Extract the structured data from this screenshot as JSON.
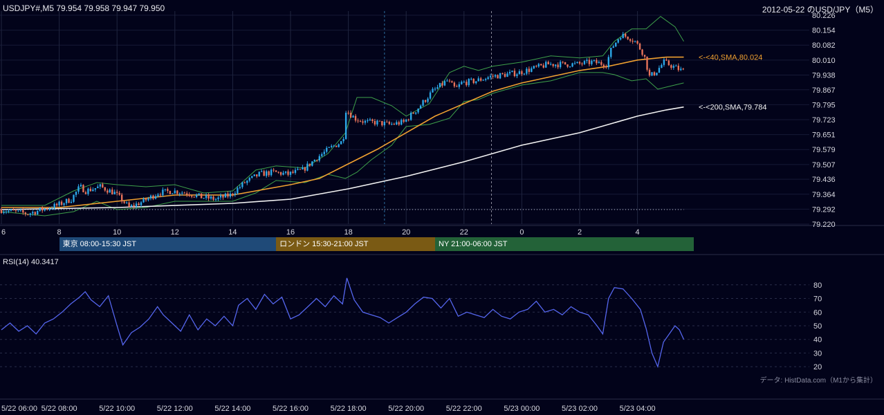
{
  "header": {
    "symbol_info": "USDJPY#,M5 79.954 79.958 79.947 79.950",
    "chart_title": "2012-05-22 のUSD/JPY（M5）"
  },
  "sessions": [
    {
      "label": "東京 08:00-15:30 JST",
      "color": "#1f4a78"
    },
    {
      "label": "ロンドン 15:30-21:00 JST",
      "color": "#7a5a14"
    },
    {
      "label": "NY 21:00-06:00 JST",
      "color": "#236238"
    }
  ],
  "indicators": {
    "sma40_label": "<-<40,SMA,80.024",
    "sma40_color": "#f0a030",
    "sma200_label": "<-<200,SMA,79.784",
    "sma200_color": "#f2f2f2",
    "bollinger_color": "#3ea04a",
    "candle_up_color": "#2ca8e8",
    "candle_down_color": "#e8735a",
    "rsi_label": "RSI(14) 40.3417",
    "rsi_color": "#5566ee"
  },
  "source_note": "データ: HistData.com（M1から集計）",
  "chart_data": [
    {
      "type": "candlestick",
      "title": "2012-05-22 のUSD/JPY（M5）",
      "ylim": [
        79.22,
        80.226
      ],
      "y_ticks": [
        "80.226",
        "80.154",
        "80.082",
        "80.010",
        "79.938",
        "79.867",
        "79.795",
        "79.723",
        "79.651",
        "79.579",
        "79.507",
        "79.436",
        "79.364",
        "79.292",
        "79.220"
      ],
      "x_ticks": [
        "6",
        "8",
        "10",
        "12",
        "14",
        "16",
        "18",
        "20",
        "22",
        "0",
        "2",
        "4"
      ],
      "x_hours": [
        6,
        8,
        10,
        12,
        14,
        16,
        18,
        20,
        22,
        24,
        26,
        28
      ],
      "x_range_hours": [
        6,
        29.5
      ],
      "close_path": [
        [
          6.0,
          79.29
        ],
        [
          6.5,
          79.28
        ],
        [
          7.0,
          79.27
        ],
        [
          7.5,
          79.29
        ],
        [
          8.0,
          79.31
        ],
        [
          8.5,
          79.34
        ],
        [
          8.8,
          79.4
        ],
        [
          9.0,
          79.38
        ],
        [
          9.5,
          79.4
        ],
        [
          10.0,
          79.37
        ],
        [
          10.3,
          79.33
        ],
        [
          10.5,
          79.3
        ],
        [
          11.0,
          79.33
        ],
        [
          11.5,
          79.37
        ],
        [
          12.0,
          79.38
        ],
        [
          12.5,
          79.37
        ],
        [
          13.0,
          79.35
        ],
        [
          13.5,
          79.34
        ],
        [
          14.0,
          79.36
        ],
        [
          14.5,
          79.42
        ],
        [
          15.0,
          79.46
        ],
        [
          15.5,
          79.47
        ],
        [
          16.0,
          79.46
        ],
        [
          16.5,
          79.48
        ],
        [
          17.0,
          79.54
        ],
        [
          17.5,
          79.59
        ],
        [
          17.9,
          79.62
        ],
        [
          18.0,
          79.77
        ],
        [
          18.3,
          79.73
        ],
        [
          18.7,
          79.71
        ],
        [
          19.0,
          79.71
        ],
        [
          19.5,
          79.7
        ],
        [
          20.0,
          79.71
        ],
        [
          20.5,
          79.78
        ],
        [
          21.0,
          79.86
        ],
        [
          21.5,
          79.91
        ],
        [
          21.8,
          79.87
        ],
        [
          22.0,
          79.9
        ],
        [
          22.5,
          79.91
        ],
        [
          23.0,
          79.93
        ],
        [
          23.5,
          79.94
        ],
        [
          24.0,
          79.95
        ],
        [
          24.5,
          79.97
        ],
        [
          25.0,
          79.99
        ],
        [
          25.5,
          79.99
        ],
        [
          26.0,
          79.99
        ],
        [
          26.5,
          80.0
        ],
        [
          27.0,
          79.99
        ],
        [
          27.2,
          80.07
        ],
        [
          27.5,
          80.13
        ],
        [
          27.8,
          80.12
        ],
        [
          28.0,
          80.1
        ],
        [
          28.3,
          80.04
        ],
        [
          28.5,
          79.93
        ],
        [
          28.7,
          79.95
        ],
        [
          29.0,
          80.0
        ],
        [
          29.3,
          79.98
        ],
        [
          29.6,
          79.96
        ]
      ],
      "series": [
        {
          "name": "40,SMA",
          "points": [
            [
              6.0,
              79.3
            ],
            [
              8.0,
              79.3
            ],
            [
              10.0,
              79.33
            ],
            [
              12.0,
              79.36
            ],
            [
              14.0,
              79.36
            ],
            [
              16.0,
              79.41
            ],
            [
              17.0,
              79.44
            ],
            [
              18.0,
              79.51
            ],
            [
              19.0,
              79.58
            ],
            [
              20.0,
              79.66
            ],
            [
              21.0,
              79.74
            ],
            [
              22.0,
              79.8
            ],
            [
              23.0,
              79.86
            ],
            [
              24.0,
              79.9
            ],
            [
              25.0,
              79.93
            ],
            [
              26.0,
              79.96
            ],
            [
              27.0,
              79.98
            ],
            [
              28.0,
              80.01
            ],
            [
              29.0,
              80.024
            ],
            [
              29.6,
              80.024
            ]
          ]
        },
        {
          "name": "200,SMA",
          "points": [
            [
              6.0,
              79.29
            ],
            [
              10.0,
              79.3
            ],
            [
              14.0,
              79.32
            ],
            [
              16.0,
              79.34
            ],
            [
              18.0,
              79.39
            ],
            [
              20.0,
              79.45
            ],
            [
              22.0,
              79.52
            ],
            [
              24.0,
              79.6
            ],
            [
              26.0,
              79.66
            ],
            [
              27.0,
              79.7
            ],
            [
              28.0,
              79.74
            ],
            [
              29.0,
              79.77
            ],
            [
              29.6,
              79.784
            ]
          ]
        },
        {
          "name": "BB upper",
          "points": [
            [
              6.0,
              79.31
            ],
            [
              7.5,
              79.31
            ],
            [
              8.5,
              79.38
            ],
            [
              9.3,
              79.42
            ],
            [
              10.0,
              79.41
            ],
            [
              11.0,
              79.4
            ],
            [
              12.0,
              79.41
            ],
            [
              13.0,
              79.37
            ],
            [
              14.0,
              79.38
            ],
            [
              14.8,
              79.48
            ],
            [
              15.5,
              79.5
            ],
            [
              16.5,
              79.49
            ],
            [
              17.3,
              79.56
            ],
            [
              17.9,
              79.66
            ],
            [
              18.3,
              79.83
            ],
            [
              18.8,
              79.83
            ],
            [
              19.5,
              79.79
            ],
            [
              20.0,
              79.74
            ],
            [
              20.8,
              79.8
            ],
            [
              21.5,
              79.95
            ],
            [
              22.0,
              79.98
            ],
            [
              22.5,
              79.96
            ],
            [
              23.0,
              79.98
            ],
            [
              24.0,
              80.0
            ],
            [
              25.0,
              80.03
            ],
            [
              26.0,
              80.02
            ],
            [
              26.8,
              80.03
            ],
            [
              27.2,
              80.1
            ],
            [
              27.8,
              80.16
            ],
            [
              28.3,
              80.16
            ],
            [
              28.8,
              80.22
            ],
            [
              29.3,
              80.17
            ],
            [
              29.6,
              80.1
            ]
          ]
        },
        {
          "name": "BB lower",
          "points": [
            [
              6.0,
              79.28
            ],
            [
              7.5,
              79.26
            ],
            [
              8.5,
              79.28
            ],
            [
              9.3,
              79.33
            ],
            [
              10.0,
              79.29
            ],
            [
              11.0,
              79.3
            ],
            [
              12.0,
              79.33
            ],
            [
              13.0,
              79.33
            ],
            [
              14.0,
              79.33
            ],
            [
              14.8,
              79.37
            ],
            [
              15.5,
              79.43
            ],
            [
              16.5,
              79.42
            ],
            [
              17.3,
              79.46
            ],
            [
              17.9,
              79.44
            ],
            [
              18.3,
              79.47
            ],
            [
              18.8,
              79.53
            ],
            [
              19.5,
              79.6
            ],
            [
              20.0,
              79.69
            ],
            [
              20.8,
              79.7
            ],
            [
              21.5,
              79.73
            ],
            [
              22.0,
              79.81
            ],
            [
              22.5,
              79.82
            ],
            [
              23.0,
              79.85
            ],
            [
              24.0,
              79.89
            ],
            [
              25.0,
              79.91
            ],
            [
              26.0,
              79.95
            ],
            [
              26.8,
              79.95
            ],
            [
              27.2,
              79.94
            ],
            [
              27.8,
              79.91
            ],
            [
              28.3,
              79.92
            ],
            [
              28.7,
              79.87
            ],
            [
              29.3,
              79.89
            ],
            [
              29.6,
              79.9
            ]
          ]
        }
      ],
      "annotations": [
        "<-<40,SMA,80.024",
        "<-<200,SMA,79.784"
      ]
    },
    {
      "type": "line",
      "title": "RSI(14) 40.3417",
      "ylim": [
        15,
        87
      ],
      "y_ticks": [
        80,
        70,
        60,
        50,
        40,
        30,
        20
      ],
      "x_ticks": [
        "5/22 06:00",
        "5/22 08:00",
        "5/22 10:00",
        "5/22 12:00",
        "5/22 14:00",
        "5/22 16:00",
        "5/22 18:00",
        "5/22 20:00",
        "5/22 22:00",
        "5/23 00:00",
        "5/23 02:00",
        "5/23 04:00"
      ],
      "x_hours": [
        6,
        8,
        10,
        12,
        14,
        16,
        18,
        20,
        22,
        24,
        26,
        28
      ],
      "series": [
        {
          "name": "RSI(14)",
          "points": [
            [
              6.0,
              47
            ],
            [
              6.3,
              52
            ],
            [
              6.6,
              46
            ],
            [
              6.9,
              50
            ],
            [
              7.2,
              44
            ],
            [
              7.5,
              52
            ],
            [
              7.8,
              55
            ],
            [
              8.1,
              60
            ],
            [
              8.4,
              66
            ],
            [
              8.7,
              71
            ],
            [
              8.9,
              75
            ],
            [
              9.1,
              69
            ],
            [
              9.4,
              64
            ],
            [
              9.7,
              72
            ],
            [
              10.0,
              50
            ],
            [
              10.2,
              36
            ],
            [
              10.5,
              45
            ],
            [
              10.8,
              49
            ],
            [
              11.1,
              55
            ],
            [
              11.4,
              64
            ],
            [
              11.6,
              58
            ],
            [
              11.9,
              52
            ],
            [
              12.2,
              46
            ],
            [
              12.5,
              58
            ],
            [
              12.8,
              47
            ],
            [
              13.1,
              55
            ],
            [
              13.4,
              50
            ],
            [
              13.7,
              57
            ],
            [
              14.0,
              50
            ],
            [
              14.2,
              65
            ],
            [
              14.5,
              70
            ],
            [
              14.8,
              62
            ],
            [
              15.1,
              73
            ],
            [
              15.4,
              66
            ],
            [
              15.7,
              71
            ],
            [
              16.0,
              55
            ],
            [
              16.3,
              58
            ],
            [
              16.6,
              64
            ],
            [
              16.9,
              70
            ],
            [
              17.2,
              64
            ],
            [
              17.5,
              72
            ],
            [
              17.8,
              66
            ],
            [
              17.95,
              85
            ],
            [
              18.2,
              69
            ],
            [
              18.5,
              60
            ],
            [
              18.8,
              58
            ],
            [
              19.1,
              56
            ],
            [
              19.4,
              52
            ],
            [
              19.7,
              56
            ],
            [
              20.0,
              60
            ],
            [
              20.3,
              66
            ],
            [
              20.6,
              71
            ],
            [
              20.9,
              70
            ],
            [
              21.2,
              63
            ],
            [
              21.5,
              70
            ],
            [
              21.8,
              57
            ],
            [
              22.1,
              60
            ],
            [
              22.4,
              58
            ],
            [
              22.7,
              56
            ],
            [
              23.0,
              62
            ],
            [
              23.3,
              57
            ],
            [
              23.6,
              55
            ],
            [
              23.9,
              60
            ],
            [
              24.2,
              62
            ],
            [
              24.5,
              68
            ],
            [
              24.8,
              60
            ],
            [
              25.1,
              62
            ],
            [
              25.4,
              58
            ],
            [
              25.7,
              64
            ],
            [
              26.0,
              60
            ],
            [
              26.3,
              58
            ],
            [
              26.6,
              50
            ],
            [
              26.8,
              44
            ],
            [
              27.0,
              70
            ],
            [
              27.2,
              78
            ],
            [
              27.5,
              77
            ],
            [
              27.8,
              70
            ],
            [
              28.1,
              62
            ],
            [
              28.3,
              48
            ],
            [
              28.5,
              30
            ],
            [
              28.7,
              20
            ],
            [
              28.9,
              38
            ],
            [
              29.1,
              44
            ],
            [
              29.3,
              50
            ],
            [
              29.45,
              47
            ],
            [
              29.6,
              40
            ]
          ]
        }
      ]
    }
  ]
}
